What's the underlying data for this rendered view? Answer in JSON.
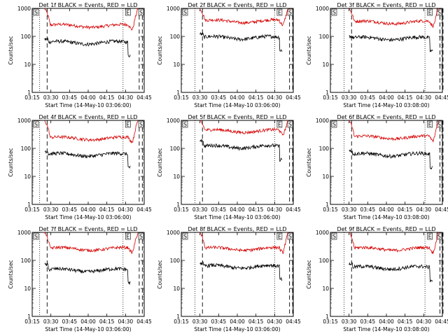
{
  "colors": {
    "events": "#000000",
    "lld": "#d40000",
    "axes": "#000000",
    "background": "#ffffff"
  },
  "chart_data": [
    {
      "type": "line",
      "title": "Det 1f BLACK = Events, RED = LLD",
      "xlabel": "Start Time (14-May-10 03:06:00)",
      "ylabel": "Counts/sec",
      "yscale": "log",
      "ylim": [
        1,
        1000
      ],
      "xlim": [
        "03:15",
        "04:45"
      ],
      "xticks": [
        "03:15",
        "03:30",
        "03:45",
        "04:00",
        "04:15",
        "04:30",
        "04:45"
      ],
      "yticks": [
        "1",
        "10",
        "100",
        "1000"
      ],
      "markers": {
        "labels": [
          "S",
          "E",
          "S"
        ]
      },
      "series": [
        {
          "name": "Events",
          "color": "#000000",
          "start": "03:25",
          "end": "04:34",
          "level": 60,
          "peak": 80
        },
        {
          "name": "LLD",
          "color": "#d40000",
          "start": "03:25",
          "end": "04:40",
          "level": 240,
          "peak": 1000
        }
      ]
    },
    {
      "type": "line",
      "title": "Det 2f BLACK = Events, RED = LLD",
      "xlabel": "Start Time (14-May-10 03:06:00)",
      "ylabel": "Counts/sec",
      "yscale": "log",
      "ylim": [
        1,
        1000
      ],
      "xlim": [
        "03:15",
        "04:45"
      ],
      "xticks": [
        "03:15",
        "03:30",
        "03:45",
        "04:00",
        "04:15",
        "04:30",
        "04:45"
      ],
      "yticks": [
        "1",
        "10",
        "100",
        "1000"
      ],
      "markers": {
        "labels": [
          "S",
          "E",
          "S"
        ]
      },
      "series": [
        {
          "name": "Events",
          "color": "#000000",
          "start": "03:30",
          "end": "04:36",
          "level": 90,
          "peak": 120
        },
        {
          "name": "LLD",
          "color": "#d40000",
          "start": "03:30",
          "end": "04:41",
          "level": 350,
          "peak": 1000
        }
      ]
    },
    {
      "type": "line",
      "title": "Det 3f BLACK = Events, RED = LLD",
      "xlabel": "Start Time (14-May-10 03:08:00)",
      "ylabel": "Counts/sec",
      "yscale": "log",
      "ylim": [
        1,
        1000
      ],
      "xlim": [
        "03:15",
        "04:45"
      ],
      "xticks": [
        "03:15",
        "03:30",
        "03:45",
        "04:00",
        "04:15",
        "04:30",
        "04:45"
      ],
      "yticks": [
        "1",
        "10",
        "100",
        "1000"
      ],
      "markers": {
        "labels": [
          "S",
          "E",
          "S"
        ]
      },
      "series": [
        {
          "name": "Events",
          "color": "#000000",
          "start": "03:30",
          "end": "04:37",
          "level": 85,
          "peak": 100
        },
        {
          "name": "LLD",
          "color": "#d40000",
          "start": "03:30",
          "end": "04:42",
          "level": 320,
          "peak": 1000
        }
      ]
    },
    {
      "type": "line",
      "title": "Det 4f BLACK = Events, RED = LLD",
      "xlabel": "Start Time (14-May-10 03:06:00)",
      "ylabel": "Counts/sec",
      "yscale": "log",
      "ylim": [
        1,
        1000
      ],
      "xlim": [
        "03:15",
        "04:45"
      ],
      "xticks": [
        "03:15",
        "03:30",
        "03:45",
        "04:00",
        "04:15",
        "04:30",
        "04:45"
      ],
      "yticks": [
        "1",
        "10",
        "100",
        "1000"
      ],
      "markers": {
        "labels": [
          "S",
          "E",
          "S"
        ]
      },
      "series": [
        {
          "name": "Events",
          "color": "#000000",
          "start": "03:25",
          "end": "04:34",
          "level": 60,
          "peak": 80
        },
        {
          "name": "LLD",
          "color": "#d40000",
          "start": "03:25",
          "end": "04:40",
          "level": 230,
          "peak": 1000
        }
      ]
    },
    {
      "type": "line",
      "title": "Det 5f BLACK = Events, RED = LLD",
      "xlabel": "Start Time (14-May-10 03:06:00)",
      "ylabel": "Counts/sec",
      "yscale": "log",
      "ylim": [
        1,
        1000
      ],
      "xlim": [
        "03:15",
        "04:45"
      ],
      "xticks": [
        "03:15",
        "03:30",
        "03:45",
        "04:00",
        "04:15",
        "04:30",
        "04:45"
      ],
      "yticks": [
        "1",
        "10",
        "100",
        "1000"
      ],
      "markers": {
        "labels": [
          "S",
          "E",
          "S"
        ]
      },
      "series": [
        {
          "name": "Events",
          "color": "#000000",
          "start": "03:30",
          "end": "04:36",
          "level": 115,
          "peak": 200
        },
        {
          "name": "LLD",
          "color": "#d40000",
          "start": "03:30",
          "end": "04:41",
          "level": 420,
          "peak": 1000
        }
      ]
    },
    {
      "type": "line",
      "title": "Det 6f BLACK = Events, RED = LLD",
      "xlabel": "Start Time (14-May-10 03:08:00)",
      "ylabel": "Counts/sec",
      "yscale": "log",
      "ylim": [
        1,
        1000
      ],
      "xlim": [
        "03:15",
        "04:45"
      ],
      "xticks": [
        "03:15",
        "03:30",
        "03:45",
        "04:00",
        "04:15",
        "04:30",
        "04:45"
      ],
      "yticks": [
        "1",
        "10",
        "100",
        "1000"
      ],
      "markers": {
        "labels": [
          "S",
          "E",
          "S"
        ]
      },
      "series": [
        {
          "name": "Events",
          "color": "#000000",
          "start": "03:30",
          "end": "04:37",
          "level": 60,
          "peak": 80
        },
        {
          "name": "LLD",
          "color": "#d40000",
          "start": "03:30",
          "end": "04:42",
          "level": 250,
          "peak": 1000
        }
      ]
    },
    {
      "type": "line",
      "title": "Det 7f BLACK = Events, RED = LLD",
      "xlabel": "Start Time (14-May-10 03:06:00)",
      "ylabel": "Counts/sec",
      "yscale": "log",
      "ylim": [
        1,
        1000
      ],
      "xlim": [
        "03:15",
        "04:45"
      ],
      "xticks": [
        "03:15",
        "03:30",
        "03:45",
        "04:00",
        "04:15",
        "04:30",
        "04:45"
      ],
      "yticks": [
        "1",
        "10",
        "100",
        "1000"
      ],
      "markers": {
        "labels": [
          "S",
          "E",
          "S"
        ]
      },
      "series": [
        {
          "name": "Events",
          "color": "#000000",
          "start": "03:25",
          "end": "04:34",
          "level": 45,
          "peak": 70
        },
        {
          "name": "LLD",
          "color": "#d40000",
          "start": "03:25",
          "end": "04:40",
          "level": 260,
          "peak": 1000
        }
      ]
    },
    {
      "type": "line",
      "title": "Det 8f BLACK = Events, RED = LLD",
      "xlabel": "Start Time (14-May-10 03:06:00)",
      "ylabel": "Counts/sec",
      "yscale": "log",
      "ylim": [
        1,
        1000
      ],
      "xlim": [
        "03:15",
        "04:45"
      ],
      "xticks": [
        "03:15",
        "03:30",
        "03:45",
        "04:00",
        "04:15",
        "04:30",
        "04:45"
      ],
      "yticks": [
        "1",
        "10",
        "100",
        "1000"
      ],
      "markers": {
        "labels": [
          "S",
          "E",
          "S"
        ]
      },
      "series": [
        {
          "name": "Events",
          "color": "#000000",
          "start": "03:30",
          "end": "04:36",
          "level": 60,
          "peak": 80
        },
        {
          "name": "LLD",
          "color": "#d40000",
          "start": "03:30",
          "end": "04:41",
          "level": 260,
          "peak": 1000
        }
      ]
    },
    {
      "type": "line",
      "title": "Det 9f BLACK = Events, RED = LLD",
      "xlabel": "Start Time (14-May-10 03:08:00)",
      "ylabel": "Counts/sec",
      "yscale": "log",
      "ylim": [
        1,
        1000
      ],
      "xlim": [
        "03:15",
        "04:45"
      ],
      "xticks": [
        "03:15",
        "03:30",
        "03:45",
        "04:00",
        "04:15",
        "04:30",
        "04:45"
      ],
      "yticks": [
        "1",
        "10",
        "100",
        "1000"
      ],
      "markers": {
        "labels": [
          "S",
          "E",
          "S"
        ]
      },
      "series": [
        {
          "name": "Events",
          "color": "#000000",
          "start": "03:30",
          "end": "04:37",
          "level": 55,
          "peak": 75
        },
        {
          "name": "LLD",
          "color": "#d40000",
          "start": "03:30",
          "end": "04:42",
          "level": 260,
          "peak": 1000
        }
      ]
    }
  ]
}
